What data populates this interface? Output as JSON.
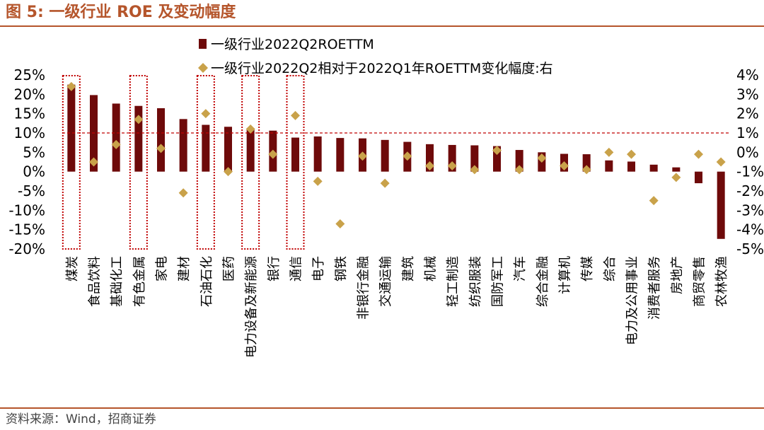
{
  "header": {
    "title": "图 5:  一级行业 ROE 及变动幅度"
  },
  "footer": {
    "source": "资料来源：Wind，招商证券"
  },
  "chart_data": {
    "type": "bar+scatter",
    "categories": [
      "煤炭",
      "食品饮料",
      "基础化工",
      "有色金属",
      "家电",
      "建材",
      "石油石化",
      "医药",
      "电力设备及新能源",
      "银行",
      "通信",
      "电子",
      "钢铁",
      "非银行金融",
      "交通运输",
      "建筑",
      "机械",
      "轻工制造",
      "纺织服装",
      "国防军工",
      "汽车",
      "综合金融",
      "计算机",
      "传媒",
      "综合",
      "电力及公用事业",
      "消费者服务",
      "房地产",
      "商贸零售",
      "农林牧渔"
    ],
    "series": [
      {
        "name": "一级行业2022Q2ROETTM",
        "type": "bar",
        "axis": "left",
        "color": "#6e0a0a",
        "values": [
          22.5,
          19.8,
          17.6,
          17.0,
          16.4,
          13.6,
          12.1,
          11.6,
          11.2,
          10.6,
          8.8,
          9.1,
          8.7,
          8.6,
          8.2,
          7.7,
          7.1,
          6.9,
          6.8,
          6.6,
          5.6,
          5.0,
          4.6,
          4.5,
          2.9,
          2.6,
          1.8,
          1.1,
          -3.0,
          -17.4
        ]
      },
      {
        "name": "一级行业2022Q2相对于2022Q1年ROETTM变化幅度:右",
        "type": "scatter",
        "axis": "right",
        "color": "#c9a24a",
        "values": [
          3.4,
          -0.5,
          0.4,
          1.7,
          0.2,
          -2.1,
          2.0,
          -1.0,
          1.2,
          -0.1,
          1.9,
          -1.5,
          -3.7,
          -0.2,
          -1.6,
          -0.2,
          -0.7,
          -0.7,
          -0.9,
          0.1,
          -0.9,
          -0.3,
          -0.7,
          -0.9,
          0.0,
          -0.1,
          -2.5,
          -1.3,
          -0.1,
          -0.5
        ]
      }
    ],
    "left_axis": {
      "min": -20,
      "max": 25,
      "step": 5,
      "format": "percent"
    },
    "right_axis": {
      "min": -5,
      "max": 4,
      "step": 1,
      "format": "percent"
    },
    "reference_line": {
      "axis": "right",
      "value": 1,
      "style": "dashed",
      "color": "#c00000"
    },
    "highlighted_categories": [
      "煤炭",
      "有色金属",
      "石油石化",
      "电力设备及新能源",
      "通信"
    ],
    "legend_position": "top-center"
  }
}
